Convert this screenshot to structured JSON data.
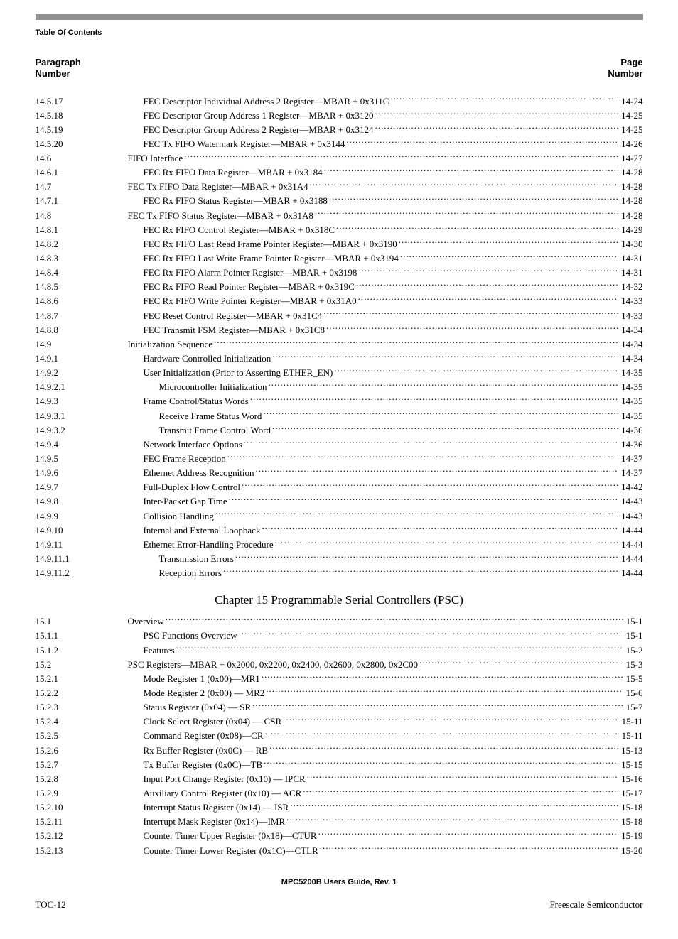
{
  "header": {
    "label": "Table Of Contents"
  },
  "columns": {
    "left_line1": "Paragraph",
    "left_line2": "Number",
    "right_line1": "Page",
    "right_line2": "Number"
  },
  "chapter": {
    "title": "Chapter 15 Programmable Serial Controllers (PSC)"
  },
  "footer": {
    "center": "MPC5200B Users Guide, Rev. 1",
    "left": "TOC-12",
    "right": "Freescale Semiconductor"
  },
  "section1": [
    {
      "num": "14.5.17",
      "title": "FEC Descriptor Individual Address 2 Register—MBAR + 0x311C",
      "page": "14-24",
      "indent": 2
    },
    {
      "num": "14.5.18",
      "title": "FEC Descriptor Group Address 1 Register—MBAR + 0x3120",
      "page": "14-25",
      "indent": 2
    },
    {
      "num": "14.5.19",
      "title": "FEC Descriptor Group Address 2 Register—MBAR + 0x3124",
      "page": "14-25",
      "indent": 2
    },
    {
      "num": "14.5.20",
      "title": "FEC Tx FIFO Watermark Register—MBAR + 0x3144",
      "page": "14-26",
      "indent": 2
    },
    {
      "num": "14.6",
      "title": "FIFO Interface",
      "page": "14-27",
      "indent": 1
    },
    {
      "num": "14.6.1",
      "title": "FEC Rx FIFO Data Register—MBAR + 0x3184",
      "page": "14-28",
      "indent": 2
    },
    {
      "num": "14.7",
      "title": "FEC Tx FIFO Data Register—MBAR + 0x31A4",
      "page": "14-28",
      "indent": 1
    },
    {
      "num": "14.7.1",
      "title": "FEC Rx FIFO Status Register—MBAR + 0x3188",
      "page": "14-28",
      "indent": 2
    },
    {
      "num": "14.8",
      "title": "FEC Tx FIFO Status Register—MBAR + 0x31A8",
      "page": "14-28",
      "indent": 1
    },
    {
      "num": "14.8.1",
      "title": "FEC Rx FIFO Control Register—MBAR + 0x318C",
      "page": "14-29",
      "indent": 2
    },
    {
      "num": "14.8.2",
      "title": "FEC Rx FIFO Last Read Frame Pointer Register—MBAR + 0x3190",
      "page": "14-30",
      "indent": 2
    },
    {
      "num": "14.8.3",
      "title": "FEC Rx FIFO Last Write Frame Pointer Register—MBAR + 0x3194",
      "page": "14-31",
      "indent": 2
    },
    {
      "num": "14.8.4",
      "title": "FEC Rx FIFO Alarm Pointer Register—MBAR + 0x3198",
      "page": "14-31",
      "indent": 2
    },
    {
      "num": "14.8.5",
      "title": "FEC Rx FIFO Read Pointer Register—MBAR + 0x319C",
      "page": "14-32",
      "indent": 2
    },
    {
      "num": "14.8.6",
      "title": "FEC Rx FIFO Write Pointer Register—MBAR + 0x31A0",
      "page": "14-33",
      "indent": 2
    },
    {
      "num": "14.8.7",
      "title": "FEC Reset Control Register—MBAR + 0x31C4",
      "page": "14-33",
      "indent": 2
    },
    {
      "num": "14.8.8",
      "title": "FEC Transmit FSM Register—MBAR + 0x31C8",
      "page": "14-34",
      "indent": 2
    },
    {
      "num": "14.9",
      "title": "Initialization Sequence",
      "page": "14-34",
      "indent": 1
    },
    {
      "num": "14.9.1",
      "title": "Hardware Controlled Initialization",
      "page": "14-34",
      "indent": 2
    },
    {
      "num": "14.9.2",
      "title": "User Initialization (Prior to Asserting ETHER_EN)",
      "page": "14-35",
      "indent": 2
    },
    {
      "num": "14.9.2.1",
      "title": "Microcontroller Initialization",
      "page": "14-35",
      "indent": 3
    },
    {
      "num": "14.9.3",
      "title": "Frame Control/Status Words",
      "page": "14-35",
      "indent": 2
    },
    {
      "num": "14.9.3.1",
      "title": "Receive Frame Status Word",
      "page": "14-35",
      "indent": 3
    },
    {
      "num": "14.9.3.2",
      "title": "Transmit Frame Control Word",
      "page": "14-36",
      "indent": 3
    },
    {
      "num": "14.9.4",
      "title": "Network Interface Options",
      "page": "14-36",
      "indent": 2
    },
    {
      "num": "14.9.5",
      "title": "FEC Frame Reception",
      "page": "14-37",
      "indent": 2
    },
    {
      "num": "14.9.6",
      "title": "Ethernet Address Recognition",
      "page": "14-37",
      "indent": 2
    },
    {
      "num": "14.9.7",
      "title": "Full-Duplex Flow Control",
      "page": "14-42",
      "indent": 2
    },
    {
      "num": "14.9.8",
      "title": "Inter-Packet Gap Time",
      "page": "14-43",
      "indent": 2
    },
    {
      "num": "14.9.9",
      "title": "Collision Handling",
      "page": "14-43",
      "indent": 2
    },
    {
      "num": "14.9.10",
      "title": "Internal and External Loopback",
      "page": "14-44",
      "indent": 2
    },
    {
      "num": "14.9.11",
      "title": "Ethernet Error-Handling Procedure",
      "page": "14-44",
      "indent": 2
    },
    {
      "num": "14.9.11.1",
      "title": "Transmission Errors",
      "page": "14-44",
      "indent": 3
    },
    {
      "num": "14.9.11.2",
      "title": "Reception Errors",
      "page": "14-44",
      "indent": 3
    }
  ],
  "section2": [
    {
      "num": "15.1",
      "title": "Overview",
      "page": "15-1",
      "indent": 1
    },
    {
      "num": "15.1.1",
      "title": "PSC Functions Overview",
      "page": "15-1",
      "indent": 2
    },
    {
      "num": "15.1.2",
      "title": "Features",
      "page": "15-2",
      "indent": 2
    },
    {
      "num": "15.2",
      "title": "PSC Registers—MBAR + 0x2000, 0x2200, 0x2400, 0x2600, 0x2800, 0x2C00",
      "page": "15-3",
      "indent": 1
    },
    {
      "num": "15.2.1",
      "title": "Mode Register 1 (0x00)—MR1",
      "page": "15-5",
      "indent": 2
    },
    {
      "num": "15.2.2",
      "title": "Mode Register 2 (0x00) — MR2",
      "page": "15-6",
      "indent": 2
    },
    {
      "num": "15.2.3",
      "title": "Status Register (0x04) — SR",
      "page": "15-7",
      "indent": 2
    },
    {
      "num": "15.2.4",
      "title": "Clock Select Register (0x04) — CSR",
      "page": "15-11",
      "indent": 2
    },
    {
      "num": "15.2.5",
      "title": "Command Register (0x08)—CR",
      "page": "15-11",
      "indent": 2
    },
    {
      "num": "15.2.6",
      "title": "Rx Buffer Register (0x0C) — RB",
      "page": "15-13",
      "indent": 2
    },
    {
      "num": "15.2.7",
      "title": "Tx Buffer Register (0x0C)—TB",
      "page": "15-15",
      "indent": 2
    },
    {
      "num": "15.2.8",
      "title": "Input Port Change Register (0x10) — IPCR",
      "page": "15-16",
      "indent": 2
    },
    {
      "num": "15.2.9",
      "title": "Auxiliary Control Register (0x10) — ACR",
      "page": "15-17",
      "indent": 2
    },
    {
      "num": "15.2.10",
      "title": "Interrupt Status Register (0x14) — ISR",
      "page": "15-18",
      "indent": 2
    },
    {
      "num": "15.2.11",
      "title": "Interrupt Mask Register (0x14)—IMR",
      "page": "15-18",
      "indent": 2
    },
    {
      "num": "15.2.12",
      "title": "Counter Timer Upper Register (0x18)—CTUR",
      "page": "15-19",
      "indent": 2
    },
    {
      "num": "15.2.13",
      "title": "Counter Timer Lower Register (0x1C)—CTLR",
      "page": "15-20",
      "indent": 2
    }
  ]
}
